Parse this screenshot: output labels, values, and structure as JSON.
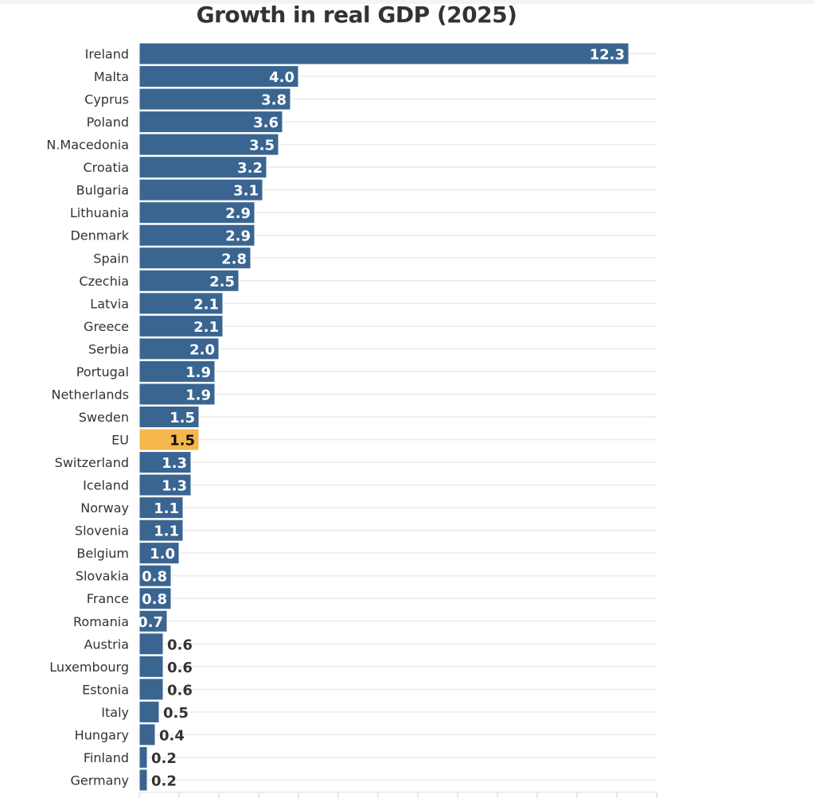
{
  "chart_data": {
    "type": "bar",
    "orientation": "horizontal",
    "title": "Growth in real GDP (2025)",
    "xlabel": "",
    "ylabel": "",
    "xlim": [
      0,
      13
    ],
    "grid": true,
    "categories": [
      "Ireland",
      "Malta",
      "Cyprus",
      "Poland",
      "N.Macedonia",
      "Croatia",
      "Bulgaria",
      "Lithuania",
      "Denmark",
      "Spain",
      "Czechia",
      "Latvia",
      "Greece",
      "Serbia",
      "Portugal",
      "Netherlands",
      "Sweden",
      "EU",
      "Switzerland",
      "Iceland",
      "Norway",
      "Slovenia",
      "Belgium",
      "Slovakia",
      "France",
      "Romania",
      "Austria",
      "Luxembourg",
      "Estonia",
      "Italy",
      "Hungary",
      "Finland",
      "Germany"
    ],
    "values": [
      12.3,
      4.0,
      3.8,
      3.6,
      3.5,
      3.2,
      3.1,
      2.9,
      2.9,
      2.8,
      2.5,
      2.1,
      2.1,
      2.0,
      1.9,
      1.9,
      1.5,
      1.5,
      1.3,
      1.3,
      1.1,
      1.1,
      1.0,
      0.8,
      0.8,
      0.7,
      0.6,
      0.6,
      0.6,
      0.5,
      0.4,
      0.2,
      0.2
    ],
    "labels": [
      "12.3",
      "4.0",
      "3.8",
      "3.6",
      "3.5",
      "3.2",
      "3.1",
      "2.9",
      "2.9",
      "2.8",
      "2.5",
      "2.1",
      "2.1",
      "2.0",
      "1.9",
      "1.9",
      "1.5",
      "1.5",
      "1.3",
      "1.3",
      "1.1",
      "1.1",
      "1.0",
      "0.8",
      "0.8",
      "0.7",
      "0.6",
      "0.6",
      "0.6",
      "0.5",
      "0.4",
      "0.2",
      "0.2"
    ],
    "highlight": "EU",
    "colors": {
      "bar": "#3a6591",
      "highlight": "#f5b64c",
      "grid": "#ebebeb",
      "text": "#333333"
    }
  }
}
